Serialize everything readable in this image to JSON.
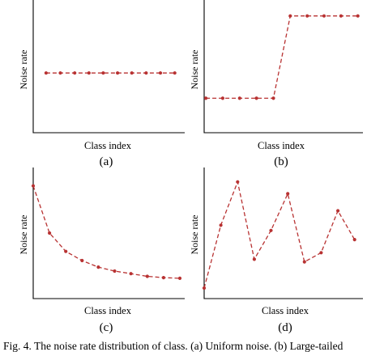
{
  "colors": {
    "series": "#b83232",
    "axis": "#000000"
  },
  "chart_data": [
    {
      "panel_label": "(a)",
      "type": "line",
      "title": "",
      "xlabel": "Class index",
      "ylabel": "Noise rate",
      "x": [
        1,
        2,
        3,
        4,
        5,
        6,
        7,
        8,
        9,
        10
      ],
      "series": [
        {
          "values": [
            0.45,
            0.45,
            0.45,
            0.45,
            0.45,
            0.45,
            0.45,
            0.45,
            0.45,
            0.45
          ]
        }
      ],
      "xlim": [
        0.1,
        10.7
      ],
      "ylim": [
        0,
        1
      ],
      "grid": false,
      "legend": "none"
    },
    {
      "panel_label": "(b)",
      "type": "line",
      "title": "",
      "xlabel": "Class index",
      "ylabel": "Noise rate",
      "x": [
        1,
        2,
        3,
        4,
        5,
        6,
        7,
        8,
        9,
        10
      ],
      "series": [
        {
          "values": [
            0.26,
            0.26,
            0.26,
            0.26,
            0.26,
            0.88,
            0.88,
            0.88,
            0.88,
            0.88
          ]
        }
      ],
      "xlim": [
        0.9,
        10.3
      ],
      "ylim": [
        0,
        1
      ],
      "grid": false,
      "legend": "none"
    },
    {
      "panel_label": "(c)",
      "type": "line",
      "title": "",
      "xlabel": "Class index",
      "ylabel": "Noise rate",
      "x": [
        1,
        2,
        3,
        4,
        5,
        6,
        7,
        8,
        9,
        10
      ],
      "series": [
        {
          "values": [
            0.86,
            0.5,
            0.36,
            0.29,
            0.24,
            0.21,
            0.19,
            0.17,
            0.16,
            0.155
          ]
        }
      ],
      "xlim": [
        1,
        10.3
      ],
      "ylim": [
        0,
        1
      ],
      "grid": false,
      "legend": "none"
    },
    {
      "panel_label": "(d)",
      "type": "line",
      "title": "",
      "xlabel": "Class index",
      "ylabel": "Noise rate",
      "x": [
        1,
        2,
        3,
        4,
        5,
        6,
        7,
        8,
        9,
        10
      ],
      "series": [
        {
          "values": [
            0.08,
            0.56,
            0.89,
            0.3,
            0.52,
            0.8,
            0.28,
            0.35,
            0.67,
            0.45
          ]
        }
      ],
      "xlim": [
        1,
        10.5
      ],
      "ylim": [
        0,
        1
      ],
      "grid": false,
      "legend": "none"
    }
  ],
  "caption": "Fig. 4.   The noise rate distribution of class. (a) Uniform noise. (b) Large-tailed"
}
